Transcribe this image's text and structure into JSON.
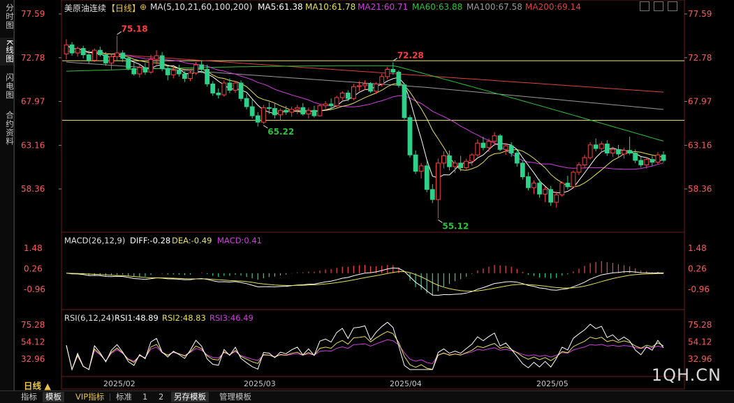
{
  "sidebar": {
    "items": [
      {
        "label": "分时图",
        "active": false
      },
      {
        "label": "K线图",
        "active": true
      },
      {
        "label": "闪电图",
        "active": false
      },
      {
        "label": "合约资料",
        "active": false
      }
    ]
  },
  "header": {
    "symbol": "美原油连续",
    "period_tag": "【日线】",
    "ma_params": "MA(5,10,21,60,100,200)",
    "ma_values": [
      {
        "label": "MA5:61.38",
        "color": "#ffffff"
      },
      {
        "label": "MA10:61.78",
        "color": "#e7e05a"
      },
      {
        "label": "MA21:60.71",
        "color": "#d23ee0"
      },
      {
        "label": "MA60:63.88",
        "color": "#2ec23b"
      },
      {
        "label": "MA100:67.58",
        "color": "#9a9a9a"
      },
      {
        "label": "MA200:69.14",
        "color": "#e04040"
      }
    ]
  },
  "macd": {
    "title": "MACD(26,12,9)",
    "diff": "DIFF:-0.28",
    "dea": "DEA:-0.49",
    "macd": "MACD:0.41",
    "ticks": [
      "1.48",
      "0.26",
      "-0.96"
    ]
  },
  "rsi": {
    "title": "RSI(6,12,24)",
    "rsi1": "RSI1:48.89",
    "rsi2": "RSI2:48.83",
    "rsi3": "RSI3:46.49",
    "ticks": [
      "75.28",
      "54.12",
      "32.96"
    ]
  },
  "chart_data": {
    "type": "candlestick",
    "price_ticks": [
      "77.59",
      "72.78",
      "67.97",
      "63.16",
      "58.36"
    ],
    "horizontal_lines": [
      72.45,
      65.9
    ],
    "annotations": [
      {
        "text": "75.18",
        "kind": "high",
        "color": "#ff4040",
        "index": 9
      },
      {
        "text": "72.28",
        "kind": "high",
        "color": "#ff4040",
        "index": 58
      },
      {
        "text": "65.22",
        "kind": "low",
        "color": "#2ec23b",
        "index": 35
      },
      {
        "text": "55.12",
        "kind": "low",
        "color": "#2ec23b",
        "index": 66
      }
    ],
    "x_labels": [
      {
        "text": "2025/02",
        "index": 10
      },
      {
        "text": "2025/03",
        "index": 35
      },
      {
        "text": "2025/04",
        "index": 62
      },
      {
        "text": "2025/05",
        "index": 88
      }
    ],
    "up_color": "#ff4040",
    "down_color": "#2fd08a",
    "ohlc": [
      [
        73.2,
        74.8,
        72.6,
        74.2
      ],
      [
        74.2,
        74.5,
        73.0,
        73.3
      ],
      [
        73.3,
        74.0,
        72.9,
        73.8
      ],
      [
        73.8,
        74.1,
        72.7,
        73.1
      ],
      [
        73.1,
        73.6,
        72.1,
        72.5
      ],
      [
        72.5,
        73.8,
        72.3,
        73.6
      ],
      [
        73.6,
        74.0,
        72.9,
        73.1
      ],
      [
        73.1,
        73.4,
        71.9,
        72.2
      ],
      [
        72.2,
        73.2,
        71.5,
        72.9
      ],
      [
        72.9,
        75.18,
        72.5,
        73.3
      ],
      [
        73.3,
        73.6,
        72.3,
        72.7
      ],
      [
        72.7,
        72.9,
        71.4,
        71.6
      ],
      [
        71.6,
        72.4,
        70.8,
        71.0
      ],
      [
        71.0,
        72.0,
        70.6,
        71.7
      ],
      [
        71.7,
        72.2,
        70.9,
        71.2
      ],
      [
        71.2,
        73.1,
        71.0,
        72.6
      ],
      [
        72.6,
        73.6,
        72.0,
        73.0
      ],
      [
        73.0,
        73.4,
        71.3,
        71.6
      ],
      [
        71.6,
        71.9,
        70.3,
        70.9
      ],
      [
        70.9,
        71.8,
        70.5,
        71.4
      ],
      [
        71.4,
        72.0,
        70.7,
        71.0
      ],
      [
        71.0,
        71.3,
        70.1,
        70.5
      ],
      [
        70.5,
        71.4,
        70.2,
        71.1
      ],
      [
        71.1,
        72.3,
        70.9,
        72.0
      ],
      [
        72.0,
        72.5,
        71.1,
        71.5
      ],
      [
        71.5,
        72.0,
        69.6,
        69.9
      ],
      [
        69.9,
        70.2,
        68.6,
        68.9
      ],
      [
        68.9,
        69.4,
        68.3,
        68.7
      ],
      [
        68.7,
        70.3,
        68.5,
        70.0
      ],
      [
        70.0,
        70.5,
        68.9,
        69.2
      ],
      [
        69.2,
        70.2,
        68.9,
        70.0
      ],
      [
        70.0,
        70.3,
        68.0,
        68.3
      ],
      [
        68.3,
        68.8,
        67.1,
        67.4
      ],
      [
        67.4,
        68.2,
        66.1,
        66.4
      ],
      [
        66.4,
        66.8,
        65.22,
        65.7
      ],
      [
        65.7,
        67.6,
        65.5,
        67.3
      ],
      [
        67.3,
        67.9,
        66.6,
        67.2
      ],
      [
        67.2,
        67.8,
        66.1,
        66.5
      ],
      [
        66.5,
        67.2,
        65.9,
        67.0
      ],
      [
        67.0,
        67.5,
        66.5,
        66.8
      ],
      [
        66.8,
        67.4,
        66.3,
        67.1
      ],
      [
        67.1,
        67.6,
        66.6,
        67.3
      ],
      [
        67.3,
        67.8,
        66.4,
        66.6
      ],
      [
        66.6,
        67.3,
        66.1,
        67.0
      ],
      [
        67.0,
        67.5,
        66.2,
        66.4
      ],
      [
        66.4,
        67.7,
        66.3,
        67.5
      ],
      [
        67.5,
        68.0,
        67.0,
        67.7
      ],
      [
        67.7,
        68.3,
        67.1,
        67.5
      ],
      [
        67.5,
        68.6,
        67.3,
        68.4
      ],
      [
        68.4,
        69.1,
        68.1,
        68.9
      ],
      [
        68.9,
        69.2,
        68.0,
        68.3
      ],
      [
        68.3,
        69.9,
        68.1,
        69.6
      ],
      [
        69.6,
        70.2,
        69.1,
        69.7
      ],
      [
        69.7,
        70.3,
        69.2,
        69.9
      ],
      [
        69.9,
        70.1,
        68.9,
        69.1
      ],
      [
        69.1,
        70.1,
        68.8,
        69.9
      ],
      [
        69.9,
        71.0,
        69.6,
        70.7
      ],
      [
        70.7,
        71.8,
        70.4,
        71.5
      ],
      [
        71.5,
        72.28,
        70.9,
        71.2
      ],
      [
        71.2,
        71.4,
        69.5,
        69.8
      ],
      [
        69.8,
        70.0,
        66.0,
        66.2
      ],
      [
        66.2,
        66.5,
        61.8,
        62.1
      ],
      [
        62.1,
        62.6,
        60.0,
        60.3
      ],
      [
        60.3,
        61.2,
        59.5,
        60.9
      ],
      [
        60.9,
        61.5,
        58.0,
        58.3
      ],
      [
        58.3,
        58.9,
        56.8,
        57.2
      ],
      [
        57.2,
        61.7,
        55.12,
        61.2
      ],
      [
        61.2,
        62.5,
        60.6,
        62.0
      ],
      [
        62.0,
        62.6,
        60.4,
        60.8
      ],
      [
        60.8,
        61.5,
        60.1,
        61.2
      ],
      [
        61.2,
        62.0,
        60.3,
        60.7
      ],
      [
        60.7,
        61.7,
        60.4,
        61.4
      ],
      [
        61.4,
        62.3,
        60.9,
        62.1
      ],
      [
        62.1,
        63.8,
        61.9,
        63.4
      ],
      [
        63.4,
        64.1,
        62.6,
        62.9
      ],
      [
        62.9,
        63.9,
        62.4,
        63.6
      ],
      [
        63.6,
        64.6,
        63.1,
        64.2
      ],
      [
        64.2,
        64.4,
        62.5,
        62.7
      ],
      [
        62.7,
        63.4,
        62.1,
        63.1
      ],
      [
        63.1,
        63.5,
        61.9,
        62.3
      ],
      [
        62.3,
        62.7,
        60.8,
        61.2
      ],
      [
        61.2,
        61.5,
        59.4,
        59.7
      ],
      [
        59.7,
        60.2,
        58.2,
        58.5
      ],
      [
        58.5,
        59.3,
        57.8,
        59.0
      ],
      [
        59.0,
        59.4,
        57.4,
        57.8
      ],
      [
        57.8,
        58.6,
        56.9,
        58.3
      ],
      [
        58.3,
        58.7,
        56.5,
        56.9
      ],
      [
        56.9,
        58.1,
        56.3,
        57.7
      ],
      [
        57.7,
        59.2,
        57.5,
        59.0
      ],
      [
        59.0,
        59.8,
        58.3,
        58.6
      ],
      [
        58.6,
        60.4,
        58.5,
        60.2
      ],
      [
        60.2,
        61.3,
        59.9,
        61.0
      ],
      [
        61.0,
        62.1,
        60.6,
        61.8
      ],
      [
        61.8,
        63.5,
        61.6,
        63.2
      ],
      [
        63.2,
        63.9,
        62.5,
        62.8
      ],
      [
        62.8,
        63.6,
        62.4,
        63.3
      ],
      [
        63.3,
        63.7,
        62.0,
        62.3
      ],
      [
        62.3,
        63.0,
        61.9,
        62.7
      ],
      [
        62.7,
        63.2,
        61.8,
        62.2
      ],
      [
        62.2,
        62.9,
        61.7,
        62.6
      ],
      [
        62.6,
        64.1,
        62.1,
        62.3
      ],
      [
        62.3,
        62.7,
        61.2,
        61.5
      ],
      [
        61.5,
        61.9,
        60.7,
        61.0
      ],
      [
        61.0,
        61.9,
        60.6,
        61.6
      ],
      [
        61.6,
        62.0,
        60.9,
        61.3
      ],
      [
        61.3,
        62.4,
        61.1,
        62.1
      ],
      [
        62.1,
        62.5,
        61.3,
        61.5
      ]
    ],
    "ma_series": [
      {
        "name": "MA5",
        "color": "#ffffff"
      },
      {
        "name": "MA10",
        "color": "#e7e05a"
      },
      {
        "name": "MA21",
        "color": "#d23ee0"
      },
      {
        "name": "MA60",
        "color": "#2ec23b"
      },
      {
        "name": "MA100",
        "color": "#9a9a9a"
      },
      {
        "name": "MA200",
        "color": "#e04040"
      }
    ]
  },
  "bottom_tabs": [
    {
      "label": "指标",
      "active": false,
      "vip": false
    },
    {
      "label": "模板",
      "active": true,
      "vip": false
    },
    {
      "label": "VIP指标",
      "active": false,
      "vip": true
    },
    {
      "label": "标准",
      "active": false,
      "vip": false
    },
    {
      "label": "1",
      "active": false,
      "vip": false
    },
    {
      "label": "2",
      "active": false,
      "vip": false
    },
    {
      "label": "另存模板",
      "active": true,
      "vip": false
    },
    {
      "label": "管理模板",
      "active": false,
      "vip": false
    }
  ],
  "period_label": "日线 ▲",
  "brand": "1QH.CN"
}
